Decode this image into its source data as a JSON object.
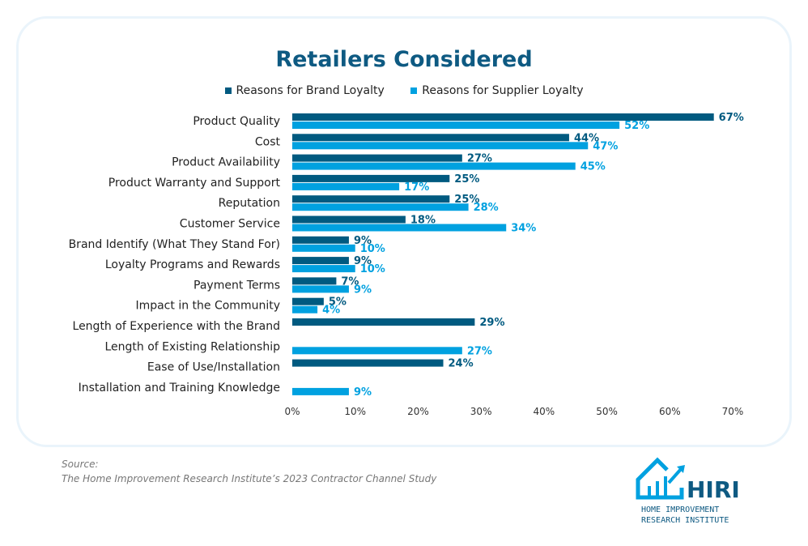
{
  "chart_data": {
    "type": "bar",
    "orientation": "horizontal",
    "title": "Retailers Considered",
    "categories": [
      "Product Quality",
      "Cost",
      "Product Availability",
      "Product Warranty and Support",
      "Reputation",
      "Customer Service",
      "Brand Identify (What They Stand For)",
      "Loyalty Programs and Rewards",
      "Payment Terms",
      "Impact in the Community",
      "Length of Experience with the Brand",
      "Length of Existing Relationship",
      "Ease of Use/Installation",
      "Installation and Training Knowledge"
    ],
    "series": [
      {
        "name": "Reasons for Brand Loyalty",
        "color": "#005a80",
        "values": [
          67,
          44,
          27,
          25,
          25,
          18,
          9,
          9,
          7,
          5,
          29,
          null,
          24,
          null
        ]
      },
      {
        "name": "Reasons for Supplier Loyalty",
        "color": "#00a1e0",
        "values": [
          52,
          47,
          45,
          17,
          28,
          34,
          10,
          10,
          9,
          4,
          null,
          27,
          null,
          9
        ]
      }
    ],
    "xlim": [
      0,
      70
    ],
    "xticks": [
      "0%",
      "10%",
      "20%",
      "30%",
      "40%",
      "50%",
      "60%",
      "70%"
    ],
    "legend": "top"
  },
  "source": {
    "label": "Source:",
    "text": "The Home Improvement Research Institute’s 2023 Contractor Channel Study"
  },
  "logo": {
    "name": "HIRI",
    "line1": "HOME IMPROVEMENT",
    "line2": "RESEARCH INSTITUTE"
  }
}
